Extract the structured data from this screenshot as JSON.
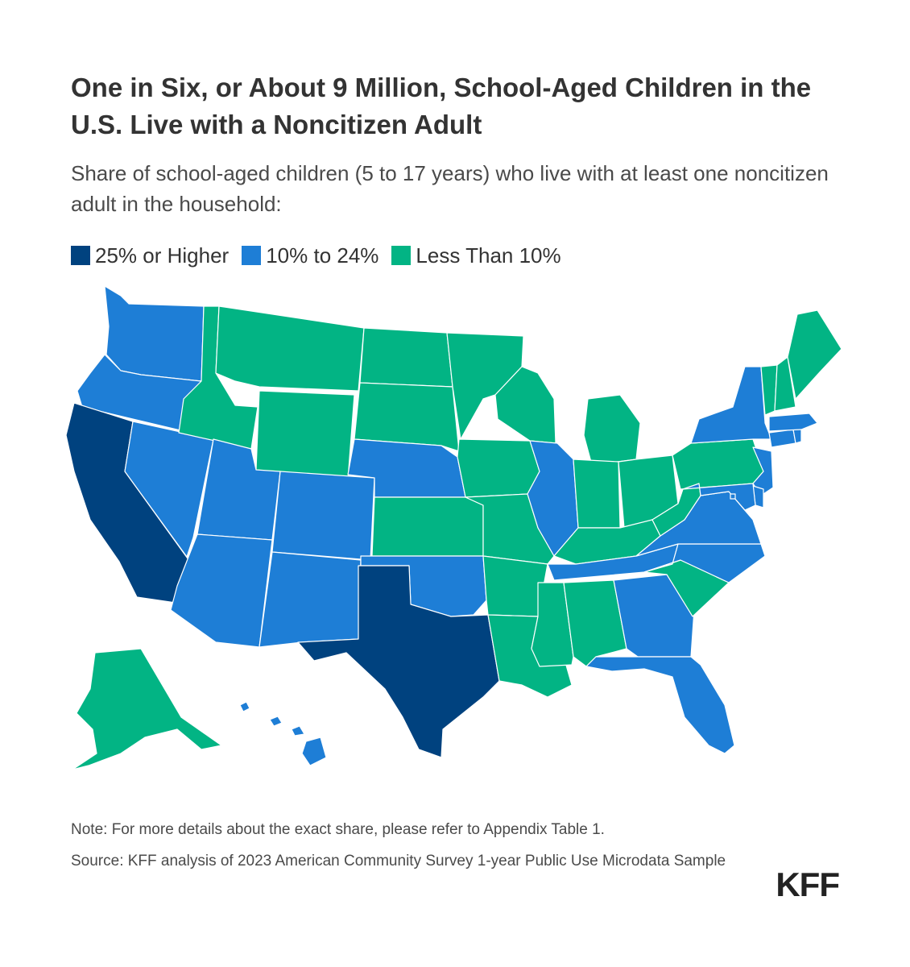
{
  "title": "One in Six, or About 9 Million, School-Aged Children in the U.S. Live with a Noncitizen Adult",
  "subtitle": "Share of school-aged children (5 to 17 years) who live with at least one noncitizen adult in the household:",
  "legend": [
    {
      "label": "25% or Higher",
      "color": "#00427f"
    },
    {
      "label": "10% to 24%",
      "color": "#1e7ed6"
    },
    {
      "label": "Less Than 10%",
      "color": "#02b484"
    }
  ],
  "map": {
    "categories": {
      "high": "25% or Higher",
      "mid": "10% to 24%",
      "low": "Less Than 10%"
    },
    "states": {
      "WA": "mid",
      "OR": "mid",
      "CA": "high",
      "NV": "mid",
      "ID": "low",
      "MT": "low",
      "WY": "low",
      "UT": "mid",
      "AZ": "mid",
      "CO": "mid",
      "NM": "mid",
      "ND": "low",
      "SD": "low",
      "NE": "mid",
      "KS": "low",
      "OK": "mid",
      "TX": "high",
      "MN": "low",
      "IA": "low",
      "MO": "low",
      "AR": "low",
      "LA": "low",
      "WI": "low",
      "IL": "mid",
      "MI": "low",
      "IN": "low",
      "OH": "low",
      "KY": "low",
      "TN": "mid",
      "MS": "low",
      "AL": "low",
      "GA": "mid",
      "FL": "mid",
      "SC": "low",
      "NC": "mid",
      "VA": "mid",
      "WV": "low",
      "PA": "low",
      "NY": "mid",
      "NJ": "mid",
      "DE": "mid",
      "MD": "mid",
      "CT": "mid",
      "RI": "mid",
      "MA": "mid",
      "VT": "low",
      "NH": "low",
      "ME": "low",
      "AK": "low",
      "HI": "mid",
      "DC": "mid"
    }
  },
  "note": "Note: For more details about the exact share, please refer to Appendix Table 1.",
  "source": "Source: KFF analysis of 2023 American Community Survey 1-year Public Use Microdata Sample",
  "logo": "KFF"
}
